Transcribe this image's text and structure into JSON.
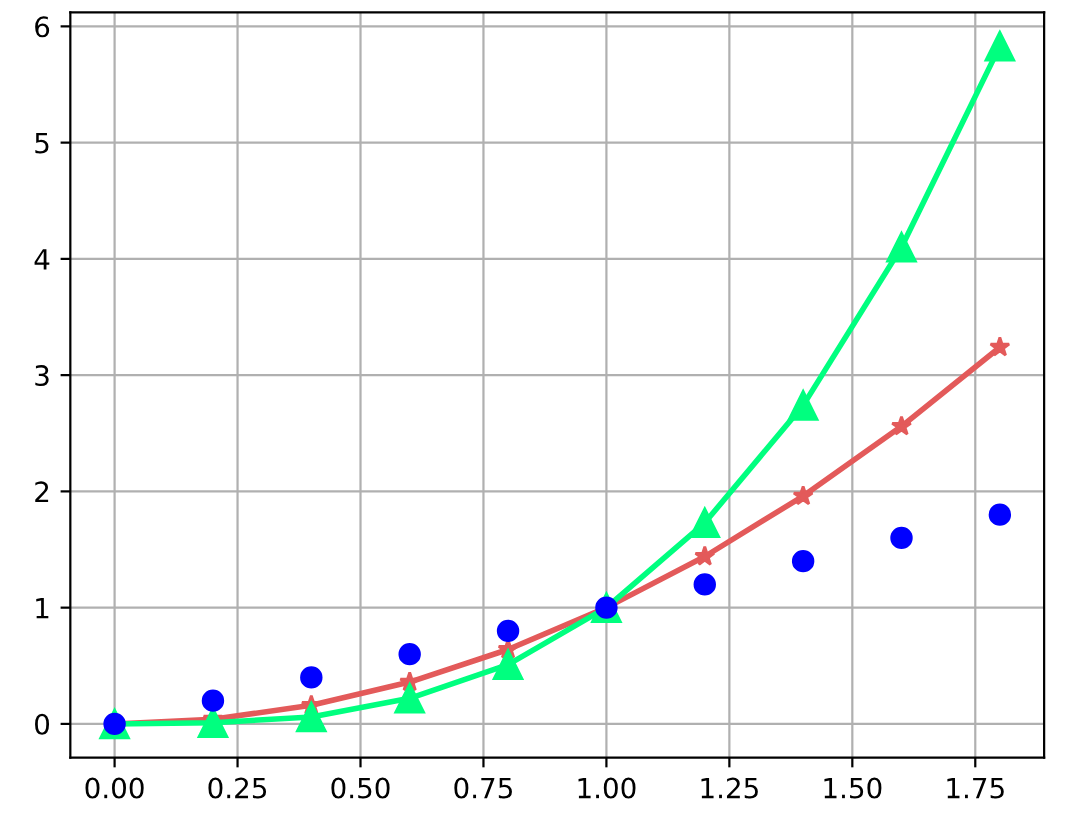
{
  "chart_data": {
    "type": "line",
    "x": [
      0,
      0.2,
      0.4,
      0.6,
      0.8,
      1.0,
      1.2,
      1.4,
      1.6,
      1.8
    ],
    "series": [
      {
        "type": "scatter",
        "color": "#0000ff",
        "marker": "circle",
        "values": [
          0,
          0.2,
          0.4,
          0.6,
          0.8,
          1.0,
          1.2,
          1.4,
          1.6,
          1.8
        ]
      },
      {
        "color": "#e35a5a",
        "marker": "star",
        "line_style": "solid",
        "values": [
          0,
          0.04,
          0.16,
          0.36,
          0.64,
          1.0,
          1.44,
          1.96,
          2.56,
          3.24
        ]
      },
      {
        "color": "#00ff7f",
        "marker": "triangle",
        "line_style": "solid",
        "values": [
          0,
          0.01,
          0.06,
          0.22,
          0.51,
          1.0,
          1.73,
          2.74,
          4.1,
          5.83
        ]
      }
    ],
    "xlim": [
      -0.09,
      1.89
    ],
    "ylim": [
      -0.29,
      6.12
    ],
    "xticks": [
      {
        "value": 0,
        "label": "0.00"
      },
      {
        "value": 0.25,
        "label": "0.25"
      },
      {
        "value": 0.5,
        "label": "0.50"
      },
      {
        "value": 0.75,
        "label": "0.75"
      },
      {
        "value": 1.0,
        "label": "1.00"
      },
      {
        "value": 1.25,
        "label": "1.25"
      },
      {
        "value": 1.5,
        "label": "1.50"
      },
      {
        "value": 1.75,
        "label": "1.75"
      }
    ],
    "yticks": [
      0,
      1,
      2,
      3,
      4,
      5,
      6
    ],
    "grid": true
  }
}
